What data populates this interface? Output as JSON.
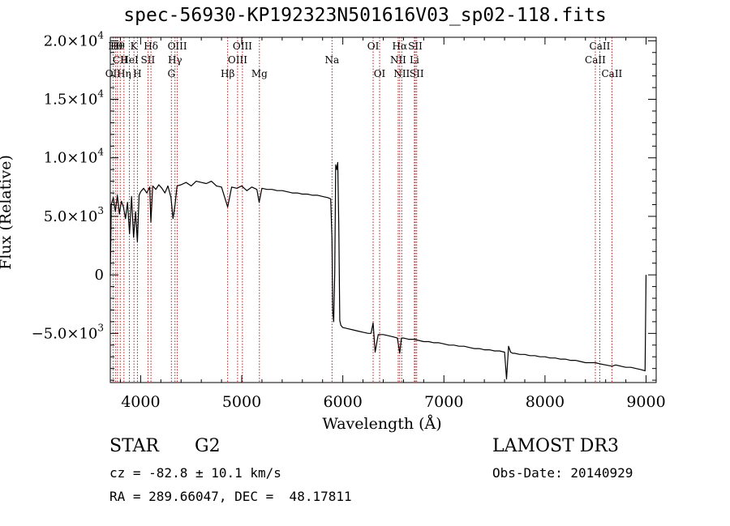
{
  "header": {
    "title": "spec-56930-KP192323N501616V03_sp02-118.fits"
  },
  "info": {
    "class": "STAR",
    "subclass": "G2",
    "survey": "LAMOST DR3",
    "cz": "cz = -82.8 ± 10.1 km/s",
    "obs_date": "Obs-Date: 20140929",
    "radec": "RA = 289.66047, DEC =  48.17811"
  },
  "chart_data": {
    "type": "line",
    "title": "spec-56930-KP192323N501616V03_sp02-118.fits",
    "xlabel": "Wavelength (Å)",
    "ylabel": "Flux (Relative)",
    "xlim": [
      3700,
      9100
    ],
    "ylim": [
      -9200,
      20300
    ],
    "xticks": [
      {
        "v": 4000,
        "label": "4000"
      },
      {
        "v": 5000,
        "label": "5000"
      },
      {
        "v": 6000,
        "label": "6000"
      },
      {
        "v": 7000,
        "label": "7000"
      },
      {
        "v": 8000,
        "label": "8000"
      },
      {
        "v": 9000,
        "label": "9000"
      }
    ],
    "yticks": [
      {
        "v": -5000,
        "mant": "−5.0×10",
        "exp": "3"
      },
      {
        "v": 0,
        "mant": "0",
        "exp": ""
      },
      {
        "v": 5000,
        "mant": "5.0×10",
        "exp": "3"
      },
      {
        "v": 10000,
        "mant": "1.0×10",
        "exp": "4"
      },
      {
        "v": 15000,
        "mant": "1.5×10",
        "exp": "4"
      },
      {
        "v": 20000,
        "mant": "2.0×10",
        "exp": "4"
      }
    ],
    "series": [
      {
        "name": "flux",
        "x": [
          3700,
          3710,
          3730,
          3750,
          3770,
          3790,
          3810,
          3830,
          3850,
          3870,
          3890,
          3910,
          3930,
          3950,
          3968,
          3985,
          4000,
          4030,
          4060,
          4090,
          4101,
          4120,
          4150,
          4180,
          4210,
          4240,
          4270,
          4300,
          4320,
          4340,
          4360,
          4400,
          4450,
          4500,
          4550,
          4600,
          4650,
          4700,
          4750,
          4800,
          4861,
          4900,
          4950,
          5000,
          5050,
          5100,
          5150,
          5172,
          5200,
          5250,
          5300,
          5350,
          5400,
          5450,
          5500,
          5550,
          5600,
          5650,
          5700,
          5750,
          5800,
          5850,
          5880,
          5893,
          5900,
          5910,
          5920,
          5930,
          5940,
          5950,
          5960,
          5970,
          5980,
          5990,
          6000,
          6050,
          6100,
          6150,
          6200,
          6250,
          6280,
          6300,
          6320,
          6350,
          6400,
          6450,
          6500,
          6540,
          6563,
          6580,
          6600,
          6650,
          6700,
          6750,
          6800,
          6850,
          6900,
          6950,
          7000,
          7050,
          7100,
          7150,
          7200,
          7250,
          7300,
          7350,
          7400,
          7450,
          7500,
          7550,
          7600,
          7620,
          7640,
          7660,
          7680,
          7700,
          7750,
          7800,
          7850,
          7900,
          7950,
          8000,
          8050,
          8100,
          8150,
          8200,
          8250,
          8300,
          8350,
          8400,
          8450,
          8498,
          8542,
          8600,
          8662,
          8700,
          8750,
          8800,
          8850,
          8900,
          8950,
          8990,
          9000
        ],
        "y": [
          -100,
          6000,
          6600,
          5400,
          6800,
          5200,
          6300,
          5800,
          4800,
          6200,
          3500,
          6700,
          3200,
          5400,
          2800,
          6800,
          7100,
          7400,
          7000,
          7500,
          4500,
          7600,
          7300,
          7700,
          7400,
          7000,
          7600,
          6600,
          4800,
          6000,
          7600,
          7700,
          7900,
          7600,
          8000,
          7900,
          7800,
          8000,
          7600,
          7500,
          5800,
          7500,
          7400,
          7600,
          7200,
          7500,
          7300,
          6200,
          7400,
          7300,
          7300,
          7200,
          7200,
          7100,
          7000,
          7000,
          6900,
          6900,
          6800,
          6800,
          6700,
          6600,
          6500,
          3000,
          -3000,
          -4000,
          200,
          9400,
          9000,
          9600,
          4200,
          -3900,
          -4300,
          -4400,
          -4500,
          -4600,
          -4700,
          -4800,
          -4900,
          -5000,
          -5000,
          -4100,
          -6600,
          -5100,
          -5100,
          -5200,
          -5300,
          -5400,
          -6700,
          -5400,
          -5400,
          -5500,
          -5500,
          -5600,
          -5700,
          -5700,
          -5800,
          -5800,
          -5900,
          -6000,
          -6000,
          -6100,
          -6100,
          -6200,
          -6300,
          -6300,
          -6400,
          -6400,
          -6500,
          -6500,
          -6600,
          -8900,
          -6100,
          -6600,
          -6700,
          -6700,
          -6800,
          -6800,
          -6900,
          -6900,
          -7000,
          -7000,
          -7100,
          -7100,
          -7200,
          -7200,
          -7300,
          -7300,
          -7400,
          -7500,
          -7500,
          -7500,
          -7600,
          -7700,
          -7800,
          -7700,
          -7800,
          -7900,
          -7900,
          -8000,
          -8100,
          -8200,
          0
        ]
      }
    ],
    "lines": [
      {
        "wl": 3727,
        "label": "OII",
        "row": 2
      },
      {
        "wl": 3750,
        "label": "Hθ",
        "row": 0
      },
      {
        "wl": 3771,
        "label": "Hθ",
        "row": 0
      },
      {
        "wl": 3798,
        "label": "CII",
        "row": 1
      },
      {
        "wl": 3835,
        "label": "Hη",
        "row": 2
      },
      {
        "wl": 3889,
        "label": "HeI",
        "row": 1
      },
      {
        "wl": 3934,
        "label": "K",
        "row": 0
      },
      {
        "wl": 3968,
        "label": "H",
        "row": 2
      },
      {
        "wl": 4072,
        "label": "SII",
        "row": 1
      },
      {
        "wl": 4102,
        "label": "Hδ",
        "row": 0
      },
      {
        "wl": 4304,
        "label": "G",
        "row": 2
      },
      {
        "wl": 4340,
        "label": "Hγ",
        "row": 1
      },
      {
        "wl": 4363,
        "label": "OIII",
        "row": 0
      },
      {
        "wl": 4861,
        "label": "Hβ",
        "row": 2
      },
      {
        "wl": 4959,
        "label": "OIII",
        "row": 1
      },
      {
        "wl": 5007,
        "label": "OIII",
        "row": 0
      },
      {
        "wl": 5175,
        "label": "Mg",
        "row": 2
      },
      {
        "wl": 5893,
        "label": "Na",
        "row": 1
      },
      {
        "wl": 6300,
        "label": "OI",
        "row": 0
      },
      {
        "wl": 6364,
        "label": "OI",
        "row": 2
      },
      {
        "wl": 6548,
        "label": "NII",
        "row": 1
      },
      {
        "wl": 6563,
        "label": "Hα",
        "row": 0
      },
      {
        "wl": 6583,
        "label": "NII",
        "row": 2
      },
      {
        "wl": 6708,
        "label": "Li",
        "row": 1
      },
      {
        "wl": 6717,
        "label": "SII",
        "row": 0
      },
      {
        "wl": 6731,
        "label": "SII",
        "row": 2
      },
      {
        "wl": 8498,
        "label": "CaII",
        "row": 1
      },
      {
        "wl": 8542,
        "label": "CaII",
        "row": 0
      },
      {
        "wl": 8662,
        "label": "CaII",
        "row": 2
      }
    ]
  }
}
